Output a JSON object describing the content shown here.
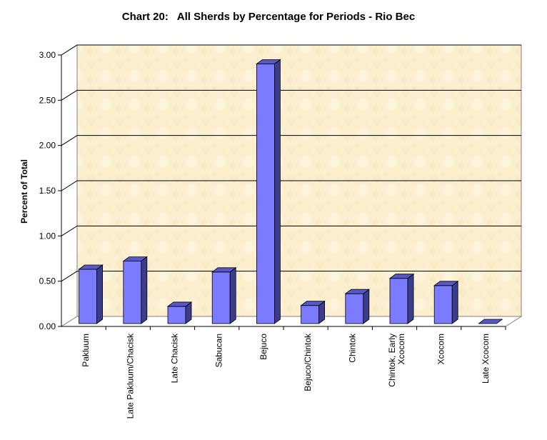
{
  "chart_data": {
    "type": "bar",
    "title": "Chart 20:   All Sherds by Percentage for Periods - Rio Bec",
    "xlabel": "",
    "ylabel": "Percent of Total",
    "ylim": [
      0,
      3.0
    ],
    "yticks": [
      "0.00",
      "0.50",
      "1.00",
      "1.50",
      "2.00",
      "2.50",
      "3.00"
    ],
    "categories": [
      [
        "Pakluum"
      ],
      [
        "Late Pakluum/Chacisk"
      ],
      [
        "Late Chacisk"
      ],
      [
        "Sabucan"
      ],
      [
        "Bejuco"
      ],
      [
        "Bejuco/Chintok"
      ],
      [
        "Chintok"
      ],
      [
        "Chintok, Early",
        "Xcocom"
      ],
      [
        "Xcocom"
      ],
      [
        "Late Xcocom"
      ]
    ],
    "values": [
      0.6,
      0.69,
      0.19,
      0.57,
      2.87,
      0.2,
      0.33,
      0.5,
      0.42,
      0.0
    ],
    "grid": true,
    "legend": "none",
    "colors": {
      "bar_front": "#7b7bff",
      "bar_side": "#3c3c8c",
      "bar_top": "#5858c8",
      "plot_background": "#fdf0d2"
    }
  }
}
